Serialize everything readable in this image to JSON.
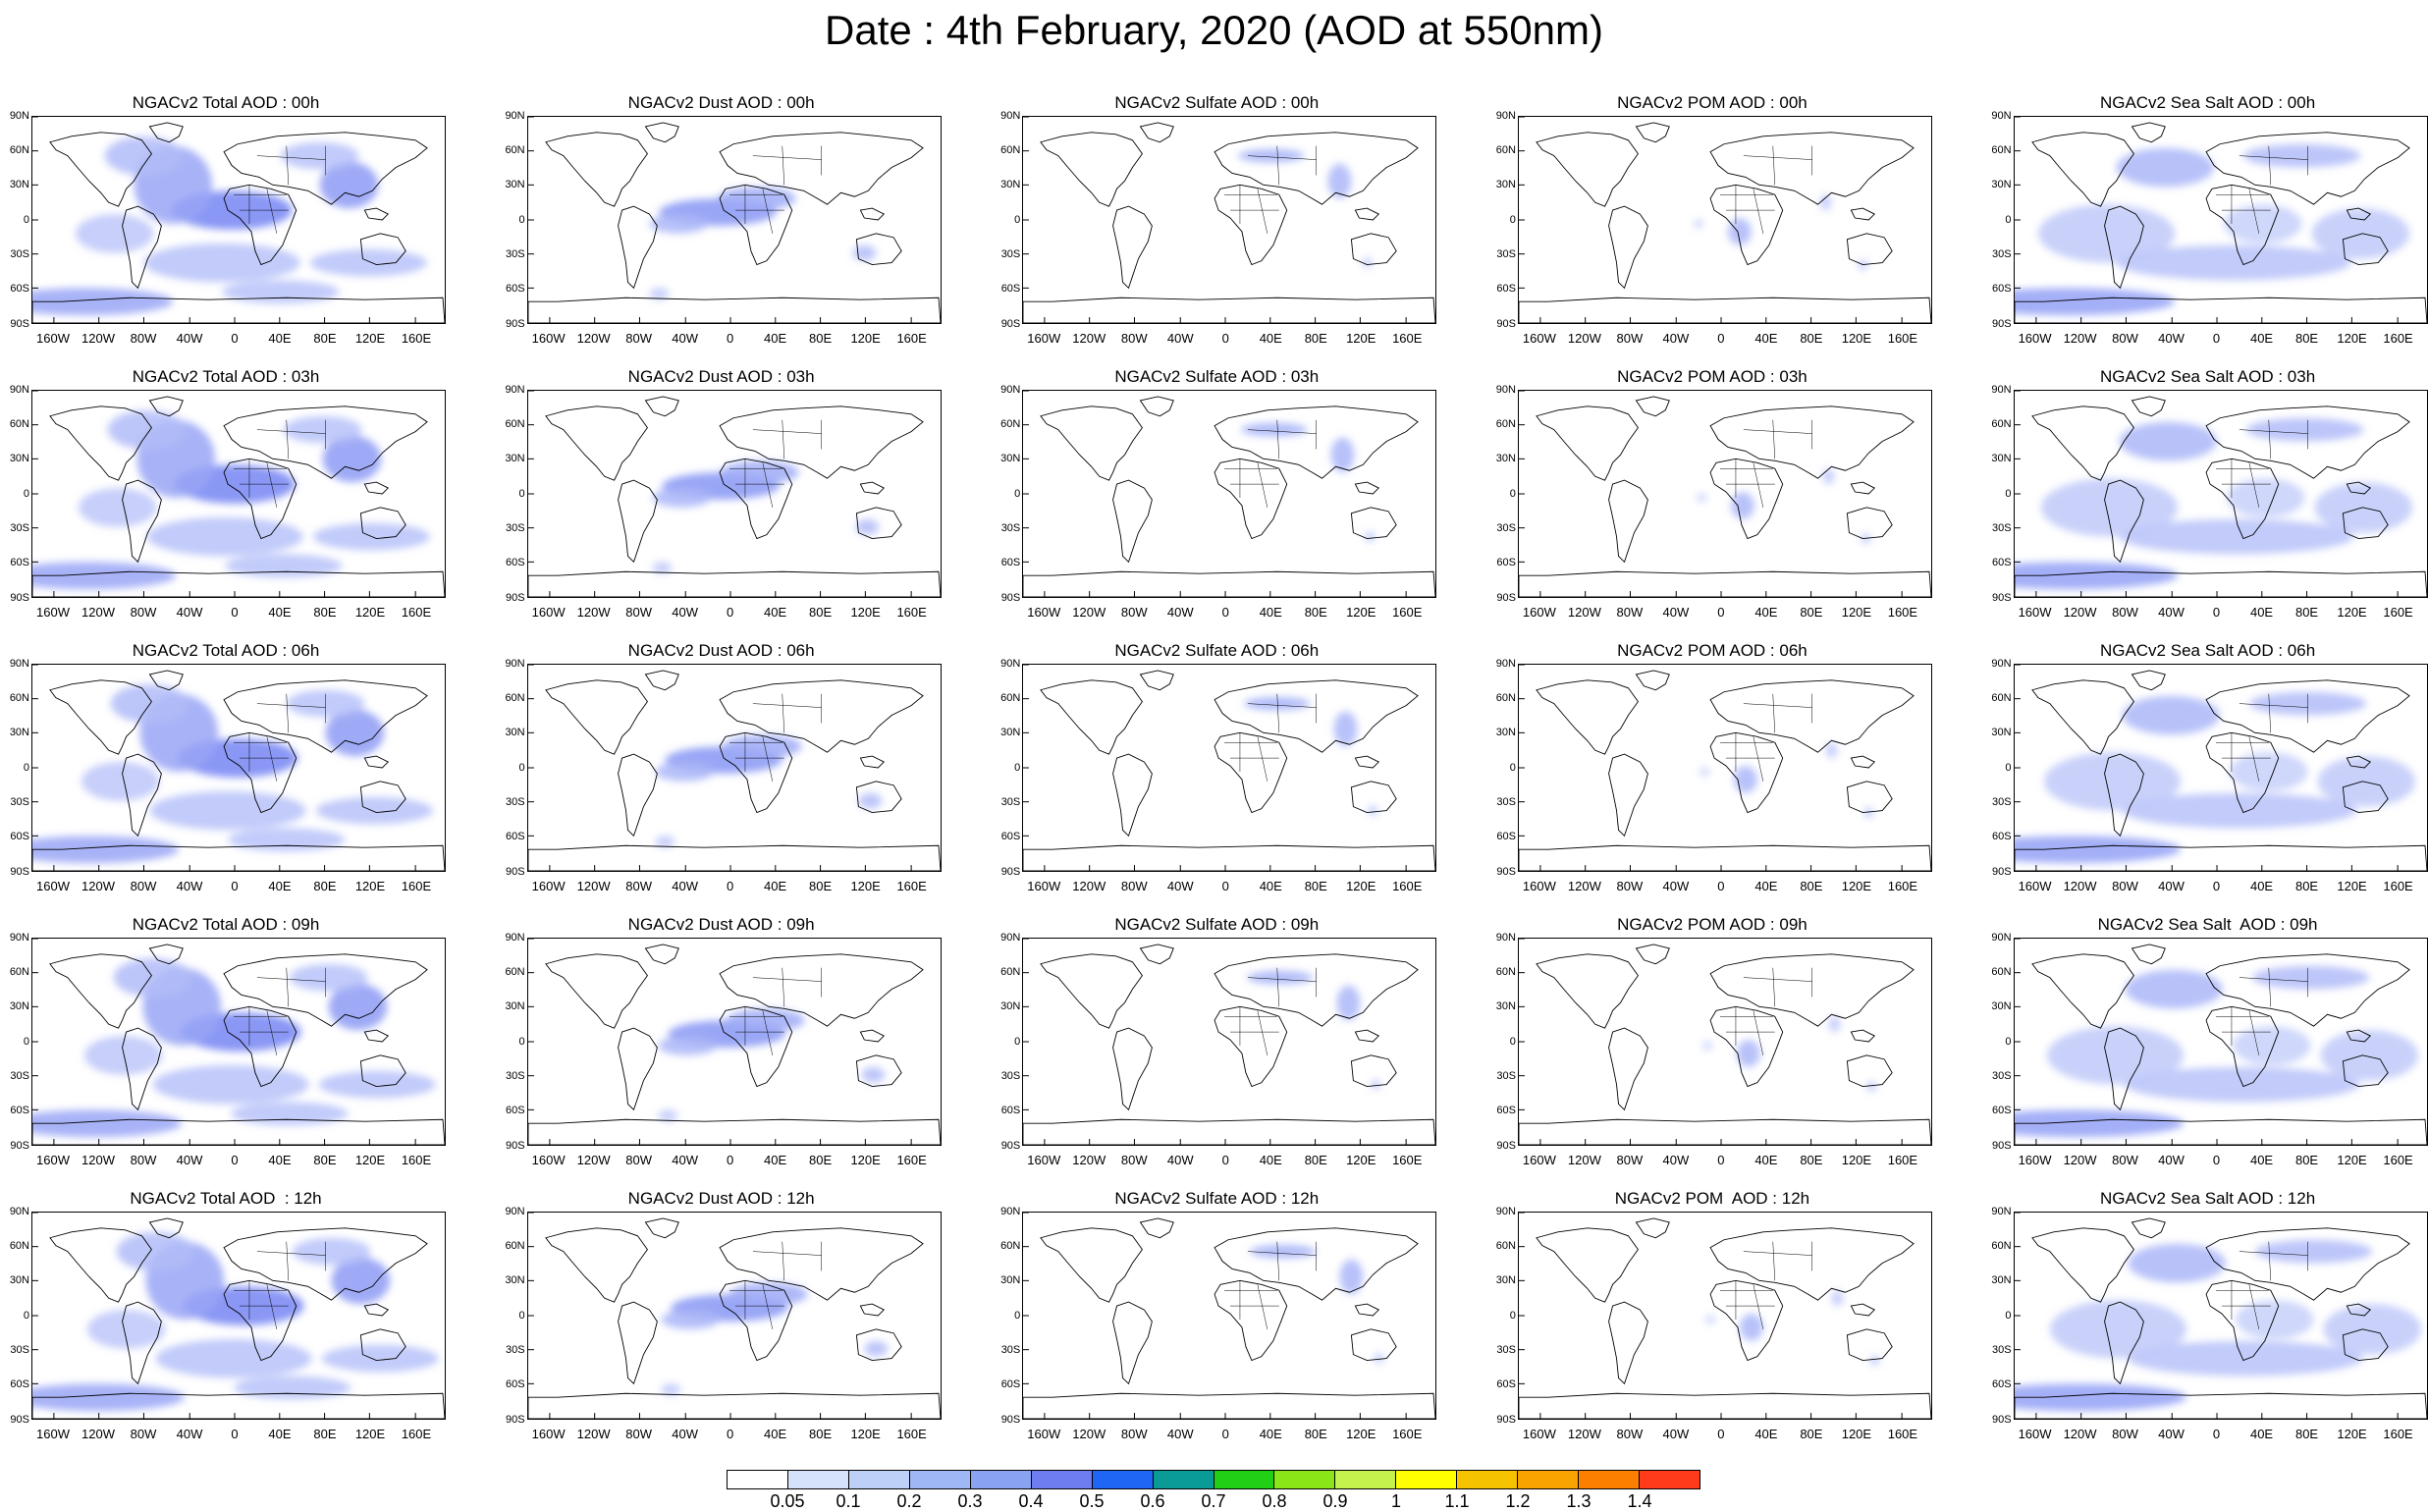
{
  "title": "Date : 4th February, 2020 (AOD at 550nm)",
  "panels": [
    [
      "NGACv2 Total AOD : 00h",
      "NGACv2 Dust AOD : 00h",
      "NGACv2 Sulfate AOD : 00h",
      "NGACv2 POM AOD : 00h",
      "NGACv2 Sea Salt AOD : 00h"
    ],
    [
      "NGACv2 Total AOD : 03h",
      "NGACv2 Dust AOD : 03h",
      "NGACv2 Sulfate AOD : 03h",
      "NGACv2 POM AOD : 03h",
      "NGACv2 Sea Salt AOD : 03h"
    ],
    [
      "NGACv2 Total AOD : 06h",
      "NGACv2 Dust AOD : 06h",
      "NGACv2 Sulfate AOD : 06h",
      "NGACv2 POM AOD : 06h",
      "NGACv2 Sea Salt AOD : 06h"
    ],
    [
      "NGACv2 Total AOD : 09h",
      "NGACv2 Dust AOD : 09h",
      "NGACv2 Sulfate AOD : 09h",
      "NGACv2 POM AOD : 09h",
      "NGACv2 Sea Salt  AOD : 09h"
    ],
    [
      "NGACv2 Total AOD  : 12h",
      "NGACv2 Dust AOD : 12h",
      "NGACv2 Sulfate AOD : 12h",
      "NGACv2 POM  AOD : 12h",
      "NGACv2 Sea Salt AOD : 12h"
    ]
  ],
  "lat_labels": [
    "90N",
    "60N",
    "30N",
    "0",
    "30S",
    "60S",
    "90S"
  ],
  "lon_labels": [
    "160W",
    "120W",
    "80W",
    "40W",
    "0",
    "40E",
    "80E",
    "120E",
    "160E"
  ],
  "colorbar": {
    "colors": [
      "#ffffff",
      "#d6e1fb",
      "#bcd0f8",
      "#9fb8f5",
      "#8aa2f2",
      "#6e7ef0",
      "#1f66f5",
      "#0a9b96",
      "#21cf16",
      "#8ae616",
      "#c6f24d",
      "#ffff00",
      "#f6c300",
      "#f9a300",
      "#fd7f00",
      "#ff3b1a"
    ],
    "labels": [
      "0.05",
      "0.1",
      "0.2",
      "0.3",
      "0.4",
      "0.5",
      "0.6",
      "0.7",
      "0.8",
      "0.9",
      "1",
      "1.1",
      "1.2",
      "1.3",
      "1.4"
    ]
  }
}
